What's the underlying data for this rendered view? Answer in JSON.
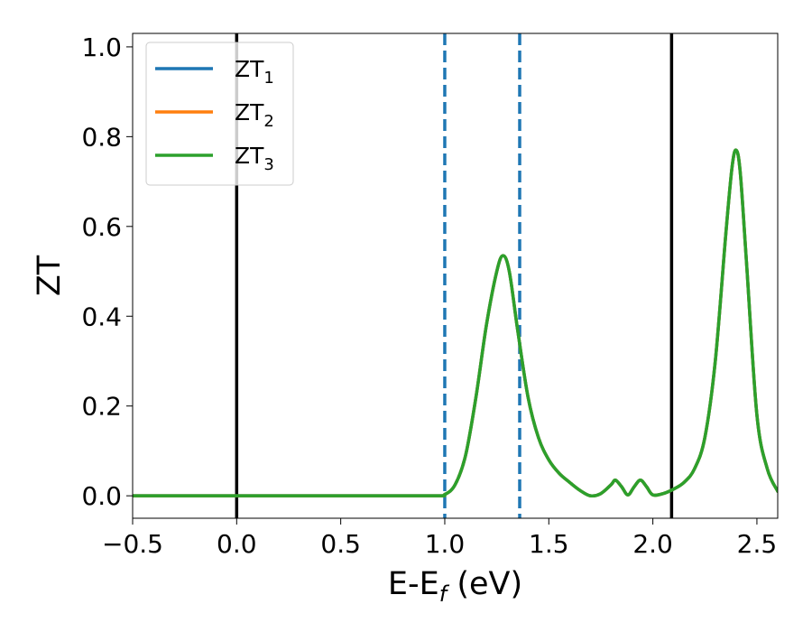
{
  "chart_data": {
    "type": "line",
    "xlabel_main": "E-E",
    "xlabel_sub": "f",
    "xlabel_unit": " (eV)",
    "ylabel": "ZT",
    "xlim": [
      -0.5,
      2.6
    ],
    "ylim": [
      -0.05,
      1.03
    ],
    "x_ticks": [
      -0.5,
      0.0,
      0.5,
      1.0,
      1.5,
      2.0,
      2.5
    ],
    "x_tick_labels": [
      "−0.5",
      "0.0",
      "0.5",
      "1.0",
      "1.5",
      "2.0",
      "2.5"
    ],
    "y_ticks": [
      0.0,
      0.2,
      0.4,
      0.6,
      0.8,
      1.0
    ],
    "y_tick_labels": [
      "0.0",
      "0.2",
      "0.4",
      "0.6",
      "0.8",
      "1.0"
    ],
    "grid": false,
    "legend_position": "upper-left",
    "vertical_lines": [
      {
        "x": 0.0,
        "style": "solid",
        "color": "#000000"
      },
      {
        "x": 2.09,
        "style": "solid",
        "color": "#000000"
      },
      {
        "x": 1.0,
        "style": "dashed",
        "color": "#1f77b4"
      },
      {
        "x": 1.36,
        "style": "dashed",
        "color": "#1f77b4"
      }
    ],
    "series": [
      {
        "name": "ZT",
        "subscript": "1",
        "color": "#1f77b4",
        "x": [
          -0.5,
          0.0,
          0.5,
          0.95,
          1.0,
          1.05,
          1.1,
          1.15,
          1.2,
          1.25,
          1.28,
          1.31,
          1.35,
          1.4,
          1.45,
          1.5,
          1.55,
          1.6,
          1.65,
          1.7,
          1.75,
          1.8,
          1.82,
          1.85,
          1.88,
          1.91,
          1.94,
          1.97,
          2.0,
          2.05,
          2.1,
          2.15,
          2.2,
          2.25,
          2.3,
          2.35,
          2.38,
          2.4,
          2.42,
          2.45,
          2.5,
          2.55,
          2.6
        ],
        "y": [
          0.0,
          0.0,
          0.0,
          0.0,
          0.003,
          0.025,
          0.09,
          0.22,
          0.38,
          0.5,
          0.535,
          0.5,
          0.37,
          0.22,
          0.13,
          0.08,
          0.05,
          0.03,
          0.012,
          0.0,
          0.005,
          0.025,
          0.035,
          0.02,
          0.002,
          0.02,
          0.035,
          0.02,
          0.002,
          0.005,
          0.015,
          0.03,
          0.06,
          0.13,
          0.3,
          0.58,
          0.73,
          0.77,
          0.72,
          0.52,
          0.18,
          0.06,
          0.01
        ]
      },
      {
        "name": "ZT",
        "subscript": "2",
        "color": "#ff7f0e",
        "x": [
          -0.5,
          0.0,
          0.5,
          0.95,
          1.0,
          1.05,
          1.1,
          1.15,
          1.2,
          1.25,
          1.28,
          1.31,
          1.35,
          1.4,
          1.45,
          1.5,
          1.55,
          1.6,
          1.65,
          1.7,
          1.75,
          1.8,
          1.82,
          1.85,
          1.88,
          1.91,
          1.94,
          1.97,
          2.0,
          2.05,
          2.1,
          2.15,
          2.2,
          2.25,
          2.3,
          2.35,
          2.38,
          2.4,
          2.42,
          2.45,
          2.5,
          2.55,
          2.6
        ],
        "y": [
          0.0,
          0.0,
          0.0,
          0.0,
          0.003,
          0.025,
          0.09,
          0.22,
          0.38,
          0.5,
          0.535,
          0.5,
          0.37,
          0.22,
          0.13,
          0.08,
          0.05,
          0.03,
          0.012,
          0.0,
          0.005,
          0.025,
          0.035,
          0.02,
          0.002,
          0.02,
          0.035,
          0.02,
          0.002,
          0.005,
          0.015,
          0.03,
          0.06,
          0.13,
          0.3,
          0.58,
          0.73,
          0.77,
          0.72,
          0.52,
          0.18,
          0.06,
          0.01
        ]
      },
      {
        "name": "ZT",
        "subscript": "3",
        "color": "#2ca02c",
        "x": [
          -0.5,
          0.0,
          0.5,
          0.95,
          1.0,
          1.05,
          1.1,
          1.15,
          1.2,
          1.25,
          1.28,
          1.31,
          1.35,
          1.4,
          1.45,
          1.5,
          1.55,
          1.6,
          1.65,
          1.7,
          1.75,
          1.8,
          1.82,
          1.85,
          1.88,
          1.91,
          1.94,
          1.97,
          2.0,
          2.05,
          2.1,
          2.15,
          2.2,
          2.25,
          2.3,
          2.35,
          2.38,
          2.4,
          2.42,
          2.45,
          2.5,
          2.55,
          2.6
        ],
        "y": [
          0.0,
          0.0,
          0.0,
          0.0,
          0.003,
          0.025,
          0.09,
          0.22,
          0.38,
          0.5,
          0.535,
          0.5,
          0.37,
          0.22,
          0.13,
          0.08,
          0.05,
          0.03,
          0.012,
          0.0,
          0.005,
          0.025,
          0.035,
          0.02,
          0.002,
          0.02,
          0.035,
          0.02,
          0.002,
          0.005,
          0.015,
          0.03,
          0.06,
          0.13,
          0.3,
          0.58,
          0.73,
          0.77,
          0.72,
          0.52,
          0.18,
          0.06,
          0.01
        ]
      }
    ]
  }
}
